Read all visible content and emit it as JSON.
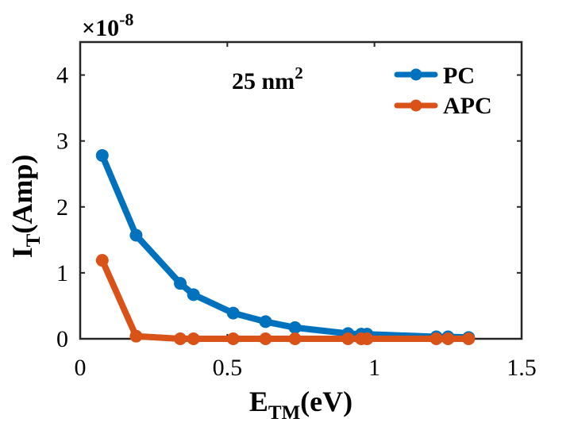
{
  "chart_data": {
    "type": "line",
    "title": "",
    "annotation": {
      "text": "25 nm",
      "superscript": "2"
    },
    "multiplier": {
      "prefix": "×10",
      "exponent": "-8"
    },
    "xlabel": {
      "main": "E",
      "subscript": "TM",
      "suffix": "(eV)"
    },
    "ylabel": {
      "main": "I",
      "subscript": "T",
      "suffix": "(Amp)"
    },
    "xlim": [
      0,
      1.5
    ],
    "ylim": [
      0,
      4.5
    ],
    "xticks": [
      0,
      0.5,
      1,
      1.5
    ],
    "xtick_labels": [
      "0",
      "0.5",
      "1",
      "1.5"
    ],
    "yticks": [
      0,
      1,
      2,
      3,
      4
    ],
    "ytick_labels": [
      "0",
      "1",
      "2",
      "3",
      "4"
    ],
    "grid": false,
    "legend_position": "top-right",
    "series": [
      {
        "name": "PC",
        "color": "#0072BD",
        "x": [
          0.075,
          0.19,
          0.34,
          0.385,
          0.52,
          0.63,
          0.73,
          0.91,
          0.955,
          0.975,
          1.21,
          1.25,
          1.32
        ],
        "y": [
          2.78,
          1.57,
          0.84,
          0.67,
          0.39,
          0.26,
          0.17,
          0.08,
          0.07,
          0.07,
          0.03,
          0.03,
          0.02
        ]
      },
      {
        "name": "APC",
        "color": "#D95319",
        "x": [
          0.075,
          0.19,
          0.34,
          0.385,
          0.52,
          0.63,
          0.73,
          0.91,
          0.955,
          0.975,
          1.21,
          1.25,
          1.32
        ],
        "y": [
          1.19,
          0.04,
          0.0,
          0.0,
          0.0,
          0.0,
          0.0,
          0.0,
          0.0,
          0.0,
          0.0,
          0.0,
          0.0
        ]
      }
    ]
  }
}
